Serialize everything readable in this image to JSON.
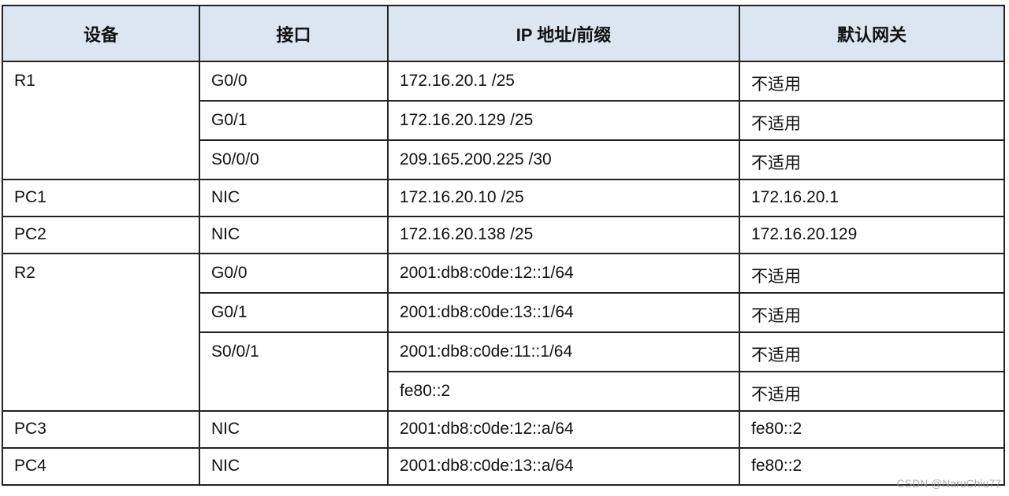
{
  "headers": [
    "设备",
    "接口",
    "IP 地址/前缀",
    "默认网关"
  ],
  "rows": [
    {
      "device": "R1",
      "interface": "G0/0",
      "ip": "172.16.20.1 /25",
      "gateway": "不适用"
    },
    {
      "device": "",
      "interface": "G0/1",
      "ip": "172.16.20.129 /25",
      "gateway": "不适用"
    },
    {
      "device": "",
      "interface": "S0/0/0",
      "ip": "209.165.200.225 /30",
      "gateway": "不适用"
    },
    {
      "device": "PC1",
      "interface": "NIC",
      "ip": "172.16.20.10 /25",
      "gateway": "172.16.20.1"
    },
    {
      "device": "PC2",
      "interface": "NIC",
      "ip": "172.16.20.138 /25",
      "gateway": "172.16.20.129"
    },
    {
      "device": "R2",
      "interface": "G0/0",
      "ip": "2001:db8:c0de:12::1/64",
      "gateway": "不适用"
    },
    {
      "device": "",
      "interface": "G0/1",
      "ip": "2001:db8:c0de:13::1/64",
      "gateway": "不适用"
    },
    {
      "device": "",
      "interface": "S0/0/1",
      "ip": "2001:db8:c0de:11::1/64",
      "gateway": "不适用"
    },
    {
      "device": "",
      "interface": "",
      "ip": "fe80::2",
      "gateway": "不适用"
    },
    {
      "device": "PC3",
      "interface": "NIC",
      "ip": "2001:db8:c0de:12::a/64",
      "gateway": "fe80::2"
    },
    {
      "device": "PC4",
      "interface": "NIC",
      "ip": "2001:db8:c0de:13::a/64",
      "gateway": "fe80::2"
    }
  ],
  "watermark": "CSDN @NaruChiu77"
}
